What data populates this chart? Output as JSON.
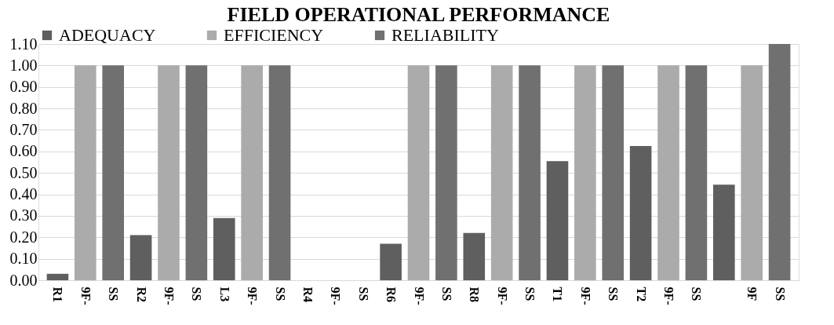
{
  "chart_data": {
    "type": "bar",
    "title": "FIELD OPERATIONAL PERFORMANCE",
    "categories": [
      "R1",
      "9F-",
      "SS",
      "R2",
      "9F-",
      "SS",
      "L3",
      "9F-",
      "SS",
      "R4",
      "9F-",
      "SS",
      "R6",
      "9F-",
      "SS",
      "R8",
      "9F-",
      "SS",
      "T1",
      "9F-",
      "SS",
      "T2",
      "9F-",
      "SS",
      null,
      "9F",
      "SS"
    ],
    "series": [
      {
        "name": "ADEQUACY",
        "color": "#5f5f5f",
        "values": [
          0.03,
          null,
          null,
          0.21,
          null,
          null,
          0.29,
          null,
          null,
          null,
          null,
          null,
          0.17,
          null,
          null,
          0.22,
          null,
          null,
          0.555,
          null,
          null,
          0.625,
          null,
          null,
          0.445,
          null,
          null
        ]
      },
      {
        "name": "EFFICIENCY",
        "color": "#ababab",
        "values": [
          null,
          1.0,
          null,
          null,
          1.0,
          null,
          null,
          1.0,
          null,
          null,
          null,
          null,
          null,
          1.0,
          null,
          null,
          1.0,
          null,
          null,
          1.0,
          null,
          null,
          1.0,
          null,
          null,
          1.0,
          null
        ]
      },
      {
        "name": "RELIABILITY",
        "color": "#707070",
        "values": [
          null,
          null,
          1.0,
          null,
          null,
          1.0,
          null,
          null,
          1.0,
          null,
          null,
          null,
          null,
          null,
          1.0,
          null,
          null,
          1.0,
          null,
          null,
          1.0,
          null,
          null,
          1.0,
          null,
          null,
          1.1
        ]
      }
    ],
    "ylim": [
      0,
      1.1
    ],
    "yticks": [
      {
        "value": 0,
        "label": "0.00"
      },
      {
        "value": 0.1,
        "label": "0.10"
      },
      {
        "value": 0.2,
        "label": "0.20"
      },
      {
        "value": 0.3,
        "label": "0.30"
      },
      {
        "value": 0.4,
        "label": "0.40"
      },
      {
        "value": 0.5,
        "label": "0.50"
      },
      {
        "value": 0.6,
        "label": "0.60"
      },
      {
        "value": 0.7,
        "label": "0.70"
      },
      {
        "value": 0.8,
        "label": "0.80"
      },
      {
        "value": 0.9,
        "label": "0.90"
      },
      {
        "value": 1.0,
        "label": "1.00"
      },
      {
        "value": 1.1,
        "label": "1.10"
      }
    ],
    "grid": "y",
    "legend": "top"
  }
}
